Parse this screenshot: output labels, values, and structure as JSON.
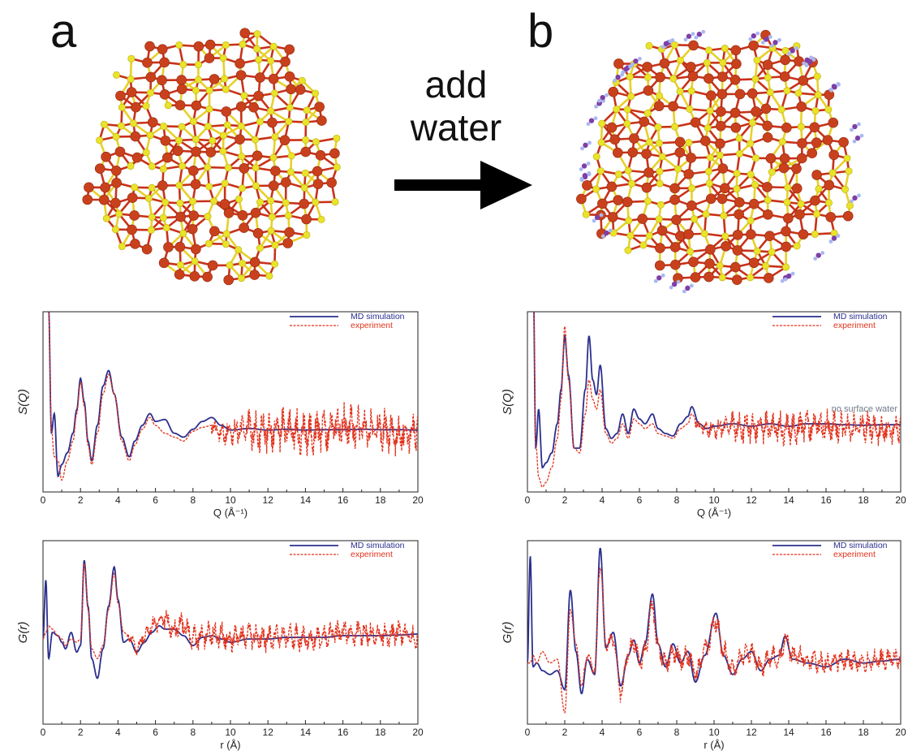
{
  "panels": {
    "a_label": "a",
    "b_label": "b",
    "arrow_text_line1": "add",
    "arrow_text_line2": "water"
  },
  "colors": {
    "oxygen": "#c9411c",
    "zinc_sulfur": "#e9e32a",
    "bond_red": "#c8321a",
    "bond_yellow": "#e8d02a",
    "hydrogen": "#a9b8f0",
    "oxygen_water": "#7e3fa8",
    "md_line": "#2b2f8e",
    "exp_line": "#e2321c",
    "annotation": "#6f7a86"
  },
  "chart_data": [
    {
      "id": "sq-a",
      "type": "line",
      "ylabel": "S(Q)",
      "xlabel": "Q (Å⁻¹)",
      "xlim": [
        0,
        20
      ],
      "xticks": [
        "0",
        "2",
        "4",
        "6",
        "8",
        "10",
        "12",
        "14",
        "16",
        "18",
        "20"
      ],
      "legend": {
        "placement": "top-right",
        "entries": [
          "MD simulation",
          "experiment"
        ]
      },
      "annotation": "",
      "series": [
        {
          "name": "MD simulation",
          "style": "solid",
          "x": [
            0.3,
            0.45,
            0.6,
            0.8,
            1.0,
            1.3,
            1.6,
            1.8,
            2.0,
            2.2,
            2.4,
            2.6,
            2.9,
            3.2,
            3.5,
            3.8,
            4.2,
            4.6,
            4.9,
            5.3,
            5.7,
            6.0,
            6.5,
            7.0,
            7.5,
            8.0,
            8.5,
            9.0,
            9.5,
            10.0,
            11,
            12,
            13,
            14,
            15,
            16,
            17,
            18,
            19,
            20
          ],
          "y": [
            3.5,
            0.3,
            0.8,
            -0.8,
            -0.5,
            -0.2,
            0.3,
            0.9,
            1.7,
            1.1,
            0.1,
            -0.4,
            0.5,
            1.5,
            1.9,
            1.3,
            0.2,
            -0.3,
            0.1,
            0.5,
            0.8,
            0.6,
            0.65,
            0.3,
            0.2,
            0.4,
            0.6,
            0.7,
            0.5,
            0.38,
            0.42,
            0.38,
            0.4,
            0.38,
            0.39,
            0.39,
            0.4,
            0.39,
            0.39,
            0.38
          ]
        },
        {
          "name": "experiment",
          "style": "dashed",
          "x": [
            0.3,
            0.45,
            0.6,
            0.8,
            1.0,
            1.3,
            1.6,
            1.8,
            2.0,
            2.2,
            2.4,
            2.6,
            2.9,
            3.2,
            3.5,
            3.8,
            4.2,
            4.6,
            4.9,
            5.3,
            5.7,
            6.0,
            6.5,
            7.0,
            7.5,
            8.0,
            8.5,
            9.0,
            9.5,
            10.0,
            11,
            12,
            13,
            14,
            15,
            16,
            17,
            18,
            19,
            20
          ],
          "y": [
            3.5,
            0.4,
            -0.3,
            -0.4,
            -0.9,
            -0.4,
            0.1,
            0.8,
            1.6,
            1.0,
            0.0,
            -0.5,
            0.3,
            1.3,
            1.8,
            1.3,
            0.1,
            -0.4,
            0.0,
            0.4,
            0.7,
            0.5,
            0.3,
            0.2,
            0.1,
            0.35,
            0.45,
            0.5,
            0.3,
            0.35,
            0.4,
            0.3,
            0.45,
            0.3,
            0.35,
            0.5,
            0.4,
            0.4,
            0.3,
            0.35
          ],
          "noise_from_x": 9,
          "noise_amplitude": 0.5
        }
      ]
    },
    {
      "id": "sq-b",
      "type": "line",
      "ylabel": "S(Q)",
      "xlabel": "Q (Å⁻¹)",
      "xlim": [
        0,
        20
      ],
      "xticks": [
        "0",
        "2",
        "4",
        "6",
        "8",
        "10",
        "12",
        "14",
        "16",
        "18",
        "20"
      ],
      "legend": {
        "placement": "top-right",
        "entries": [
          "MD simulation",
          "experiment"
        ]
      },
      "annotation": "no surface water",
      "series": [
        {
          "name": "MD simulation",
          "style": "solid",
          "x": [
            0.3,
            0.45,
            0.6,
            0.8,
            1.0,
            1.3,
            1.6,
            1.8,
            2.0,
            2.2,
            2.5,
            2.8,
            3.1,
            3.3,
            3.5,
            3.7,
            3.9,
            4.2,
            4.5,
            4.8,
            5.1,
            5.4,
            5.7,
            6.0,
            6.3,
            6.7,
            7.0,
            7.4,
            7.8,
            8.2,
            8.6,
            8.8,
            9.2,
            9.6,
            10,
            11,
            12,
            13,
            14,
            15,
            16,
            17,
            18,
            19,
            20
          ],
          "y": [
            3.5,
            -0.2,
            0.6,
            -0.6,
            -0.5,
            -0.3,
            0.3,
            1.0,
            2.1,
            1.3,
            -0.2,
            -0.2,
            1.0,
            2.1,
            1.2,
            0.9,
            1.5,
            0.2,
            0.0,
            0.1,
            0.5,
            0.1,
            0.6,
            0.4,
            0.3,
            0.5,
            0.2,
            0.1,
            0.05,
            0.3,
            0.45,
            0.65,
            0.3,
            0.2,
            0.25,
            0.3,
            0.25,
            0.3,
            0.25,
            0.3,
            0.3,
            0.28,
            0.27,
            0.28,
            0.28
          ]
        },
        {
          "name": "experiment",
          "style": "dashed",
          "x": [
            0.3,
            0.45,
            0.6,
            0.8,
            1.0,
            1.3,
            1.6,
            1.8,
            2.0,
            2.2,
            2.5,
            2.8,
            3.1,
            3.3,
            3.5,
            3.7,
            3.9,
            4.2,
            4.5,
            4.8,
            5.1,
            5.4,
            5.7,
            6.0,
            6.3,
            6.7,
            7.0,
            7.4,
            7.8,
            8.2,
            8.6,
            8.8,
            9.2,
            9.6,
            10,
            11,
            12,
            13,
            14,
            15,
            16,
            17,
            18,
            19,
            20
          ],
          "y": [
            3.5,
            -0.1,
            -0.8,
            -1.0,
            -0.9,
            -0.6,
            0.0,
            0.8,
            2.3,
            1.2,
            -0.2,
            -0.3,
            0.5,
            1.2,
            0.8,
            0.6,
            1.0,
            0.1,
            -0.1,
            0.0,
            0.3,
            0.0,
            0.4,
            0.3,
            0.2,
            0.3,
            0.1,
            0.05,
            0.0,
            0.2,
            0.3,
            0.5,
            0.25,
            0.2,
            0.2,
            0.25,
            0.2,
            0.25,
            0.2,
            0.25,
            0.25,
            0.2,
            0.25,
            0.2,
            0.2
          ],
          "noise_from_x": 9,
          "noise_amplitude": 0.3
        }
      ]
    },
    {
      "id": "gr-a",
      "type": "line",
      "ylabel": "G(r)",
      "xlabel": "r (Å)",
      "xlim": [
        0,
        20
      ],
      "xticks": [
        "0",
        "2",
        "4",
        "6",
        "8",
        "10",
        "12",
        "14",
        "16",
        "18",
        "20"
      ],
      "legend": {
        "placement": "top-right",
        "entries": [
          "MD simulation",
          "experiment"
        ]
      },
      "annotation": "",
      "series": [
        {
          "name": "MD simulation",
          "style": "solid",
          "x": [
            0,
            0.15,
            0.3,
            0.5,
            0.8,
            1.0,
            1.2,
            1.5,
            1.8,
            2.0,
            2.2,
            2.4,
            2.6,
            2.9,
            3.2,
            3.5,
            3.8,
            4.0,
            4.3,
            4.6,
            5.0,
            5.4,
            5.8,
            6.2,
            6.5,
            7.0,
            7.5,
            8.0,
            8.5,
            9.0,
            9.5,
            10,
            11,
            12,
            13,
            14,
            15,
            16,
            17,
            18,
            19,
            20
          ],
          "y": [
            0,
            1.8,
            -0.6,
            0.2,
            0.1,
            -0.1,
            -0.3,
            0.2,
            -0.4,
            -0.2,
            2.4,
            1.0,
            -0.6,
            -1.2,
            -0.3,
            1.0,
            2.2,
            1.2,
            -0.1,
            0.0,
            -0.4,
            -0.1,
            0.2,
            0.4,
            0.3,
            0.3,
            0.1,
            -0.2,
            0.05,
            0.1,
            0.0,
            -0.1,
            0.0,
            0.0,
            0.05,
            0.05,
            0.05,
            0.1,
            0.1,
            0.1,
            0.12,
            0.15
          ]
        },
        {
          "name": "experiment",
          "style": "dashed",
          "x": [
            0,
            0.15,
            0.3,
            0.5,
            0.8,
            1.0,
            1.2,
            1.5,
            1.8,
            2.0,
            2.2,
            2.4,
            2.6,
            2.9,
            3.2,
            3.5,
            3.8,
            4.0,
            4.3,
            4.6,
            5.0,
            5.4,
            5.8,
            6.2,
            6.5,
            7.0,
            7.5,
            8.0,
            8.5,
            9.0,
            9.5,
            10,
            11,
            12,
            13,
            14,
            15,
            16,
            17,
            18,
            19,
            20
          ],
          "y": [
            0,
            0.2,
            0.4,
            0.3,
            0.1,
            0.0,
            -0.2,
            0.0,
            -0.1,
            0.0,
            2.3,
            0.9,
            -0.3,
            -0.6,
            -0.2,
            0.9,
            2.0,
            1.1,
            0.2,
            0.1,
            -0.3,
            0.1,
            0.4,
            0.5,
            0.6,
            0.3,
            0.4,
            0.0,
            0.1,
            0.2,
            0.1,
            0.0,
            0.1,
            0.0,
            0.1,
            0.0,
            0.1,
            0.2,
            0.2,
            0.1,
            0.2,
            0.0
          ],
          "noise_from_x": 4.5,
          "noise_amplitude": 0.35
        }
      ]
    },
    {
      "id": "gr-b",
      "type": "line",
      "ylabel": "G(r)",
      "xlabel": "r (Å)",
      "xlim": [
        0,
        20
      ],
      "xticks": [
        "0",
        "2",
        "4",
        "6",
        "8",
        "10",
        "12",
        "14",
        "16",
        "18",
        "20"
      ],
      "legend": {
        "placement": "top-right",
        "entries": [
          "MD simulation",
          "experiment"
        ]
      },
      "annotation": "",
      "series": [
        {
          "name": "MD simulation",
          "style": "solid",
          "x": [
            0,
            0.15,
            0.3,
            0.5,
            0.8,
            1.2,
            1.6,
            2.0,
            2.3,
            2.6,
            2.9,
            3.2,
            3.6,
            3.9,
            4.2,
            4.6,
            5.0,
            5.4,
            5.7,
            6.0,
            6.3,
            6.7,
            7.0,
            7.4,
            7.8,
            8.2,
            8.6,
            9.0,
            9.5,
            10.1,
            10.5,
            11,
            11.5,
            12,
            12.5,
            13,
            13.5,
            13.8,
            14.2,
            15,
            16,
            17,
            18,
            19,
            20
          ],
          "y": [
            0,
            2.8,
            -0.1,
            0.0,
            -0.2,
            -0.3,
            -0.2,
            -0.7,
            1.9,
            0.3,
            -0.8,
            0.1,
            -0.3,
            3.0,
            0.4,
            0.8,
            -0.6,
            0.2,
            0.6,
            0.0,
            0.5,
            1.8,
            0.5,
            -0.1,
            0.5,
            0.0,
            0.3,
            -0.5,
            0.2,
            1.3,
            0.2,
            -0.3,
            0.1,
            0.3,
            -0.2,
            0.1,
            0.2,
            0.7,
            0.1,
            0.0,
            -0.1,
            0.1,
            0.0,
            0.05,
            0.1
          ]
        },
        {
          "name": "experiment",
          "style": "dashed",
          "x": [
            0,
            0.15,
            0.3,
            0.5,
            0.8,
            1.2,
            1.6,
            2.0,
            2.3,
            2.6,
            2.9,
            3.2,
            3.6,
            3.9,
            4.2,
            4.6,
            5.0,
            5.4,
            5.7,
            6.0,
            6.3,
            6.7,
            7.0,
            7.4,
            7.8,
            8.2,
            8.6,
            9.0,
            9.5,
            10.1,
            10.5,
            11,
            11.5,
            12,
            12.5,
            13,
            13.5,
            13.8,
            14.2,
            15,
            16,
            17,
            18,
            19,
            20
          ],
          "y": [
            0,
            0.0,
            0.2,
            0.0,
            0.3,
            0.0,
            0.1,
            -1.3,
            1.4,
            0.5,
            -0.6,
            0.2,
            -0.2,
            2.6,
            0.5,
            0.6,
            -0.8,
            0.3,
            0.5,
            0.0,
            0.3,
            1.5,
            0.4,
            0.0,
            0.3,
            0.1,
            0.2,
            -0.3,
            0.3,
            1.1,
            0.3,
            -0.2,
            0.2,
            0.3,
            -0.1,
            0.2,
            0.1,
            0.6,
            0.2,
            0.1,
            0.0,
            0.1,
            0.0,
            0.1,
            0.1
          ],
          "noise_from_x": 3.0,
          "noise_amplitude": 0.25
        }
      ]
    }
  ]
}
